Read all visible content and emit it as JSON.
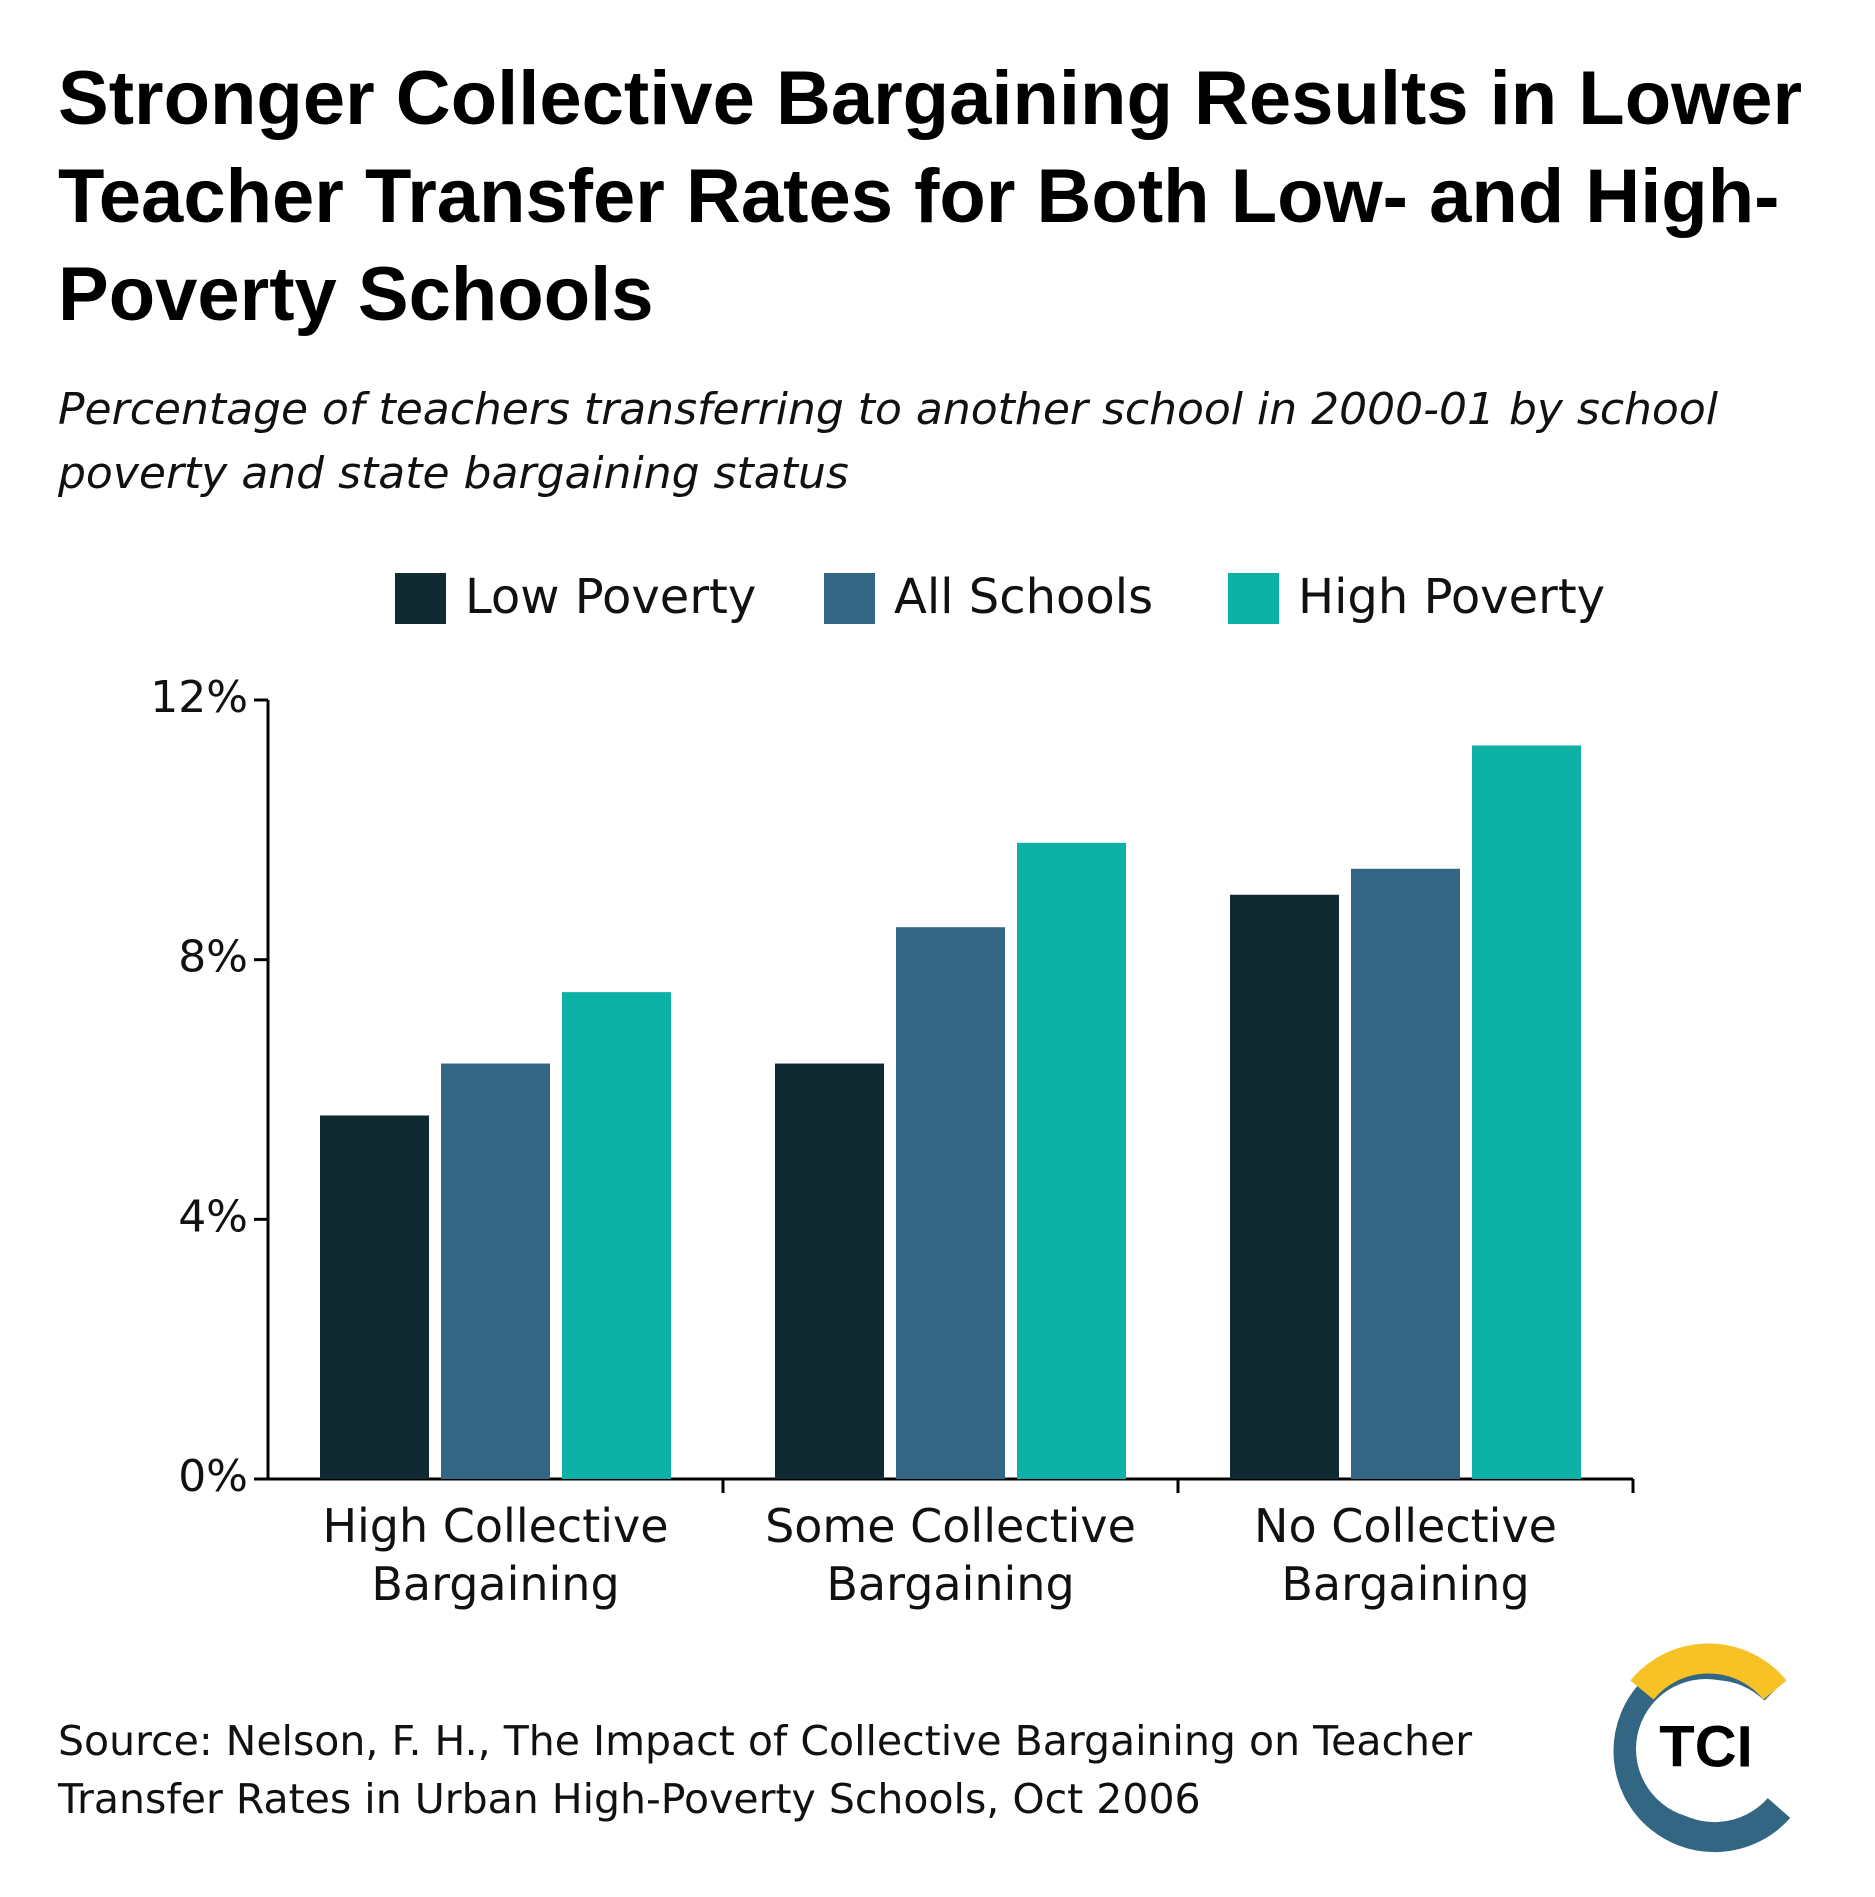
{
  "chart_data": {
    "type": "bar",
    "title": "Stronger Collective Bargaining Results in Lower Teacher Transfer Rates for Both Low- and High-Poverty Schools",
    "subtitle": "Percentage of teachers transferring to another school in 2000-01 by school poverty and state bargaining status",
    "categories": [
      "High Collective Bargaining",
      "Some Collective Bargaining",
      "No Collective Bargaining"
    ],
    "series": [
      {
        "name": "Low Poverty",
        "color": "#0f2b31",
        "values": [
          5.6,
          6.4,
          9.0
        ]
      },
      {
        "name": "All Schools",
        "color": "#336682",
        "values": [
          6.4,
          8.5,
          9.4
        ]
      },
      {
        "name": "High Poverty",
        "color": "#0db1a5",
        "values": [
          7.5,
          9.8,
          11.3
        ]
      }
    ],
    "ylim": [
      0,
      12
    ],
    "yticks": [
      {
        "value": 0,
        "label": "0%"
      },
      {
        "value": 4,
        "label": "4%"
      },
      {
        "value": 8,
        "label": "8%"
      },
      {
        "value": 12,
        "label": "12%"
      }
    ],
    "grid": false,
    "source": "Source: Nelson, F. H., The Impact of Collective Bargaining on Teacher Transfer Rates in Urban High-Poverty Schools, Oct 2006",
    "logo": "TCI"
  }
}
